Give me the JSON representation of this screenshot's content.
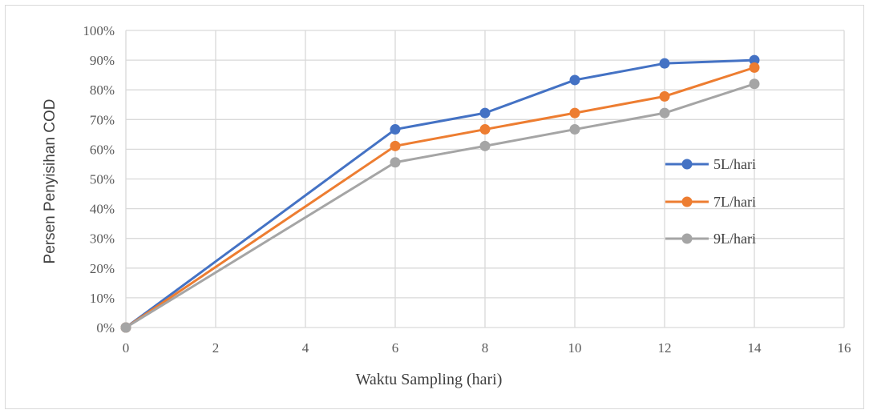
{
  "chart_data": {
    "type": "line",
    "xlabel": "Waktu Sampling (hari)",
    "ylabel": "Persen Penyisihan COD",
    "xlim": [
      0,
      16
    ],
    "ylim": [
      0,
      100
    ],
    "x_ticks": [
      "0",
      "2",
      "4",
      "6",
      "8",
      "10",
      "12",
      "14",
      "16"
    ],
    "y_ticks": [
      "0%",
      "10%",
      "20%",
      "30%",
      "40%",
      "50%",
      "60%",
      "70%",
      "80%",
      "90%",
      "100%"
    ],
    "grid": true,
    "legend_position": "right",
    "series": [
      {
        "name": "5L/hari",
        "color": "#4472c4",
        "x": [
          0,
          6,
          8,
          10,
          12,
          14
        ],
        "y": [
          0,
          66.7,
          72.2,
          83.3,
          88.9,
          90.0
        ]
      },
      {
        "name": "7L/hari",
        "color": "#ed7d31",
        "x": [
          0,
          6,
          8,
          10,
          12,
          14
        ],
        "y": [
          0,
          61.1,
          66.7,
          72.2,
          77.8,
          87.5
        ]
      },
      {
        "name": "9L/hari",
        "color": "#a5a5a5",
        "x": [
          0,
          6,
          8,
          10,
          12,
          14
        ],
        "y": [
          0,
          55.6,
          61.1,
          66.7,
          72.2,
          82.0
        ]
      }
    ]
  }
}
